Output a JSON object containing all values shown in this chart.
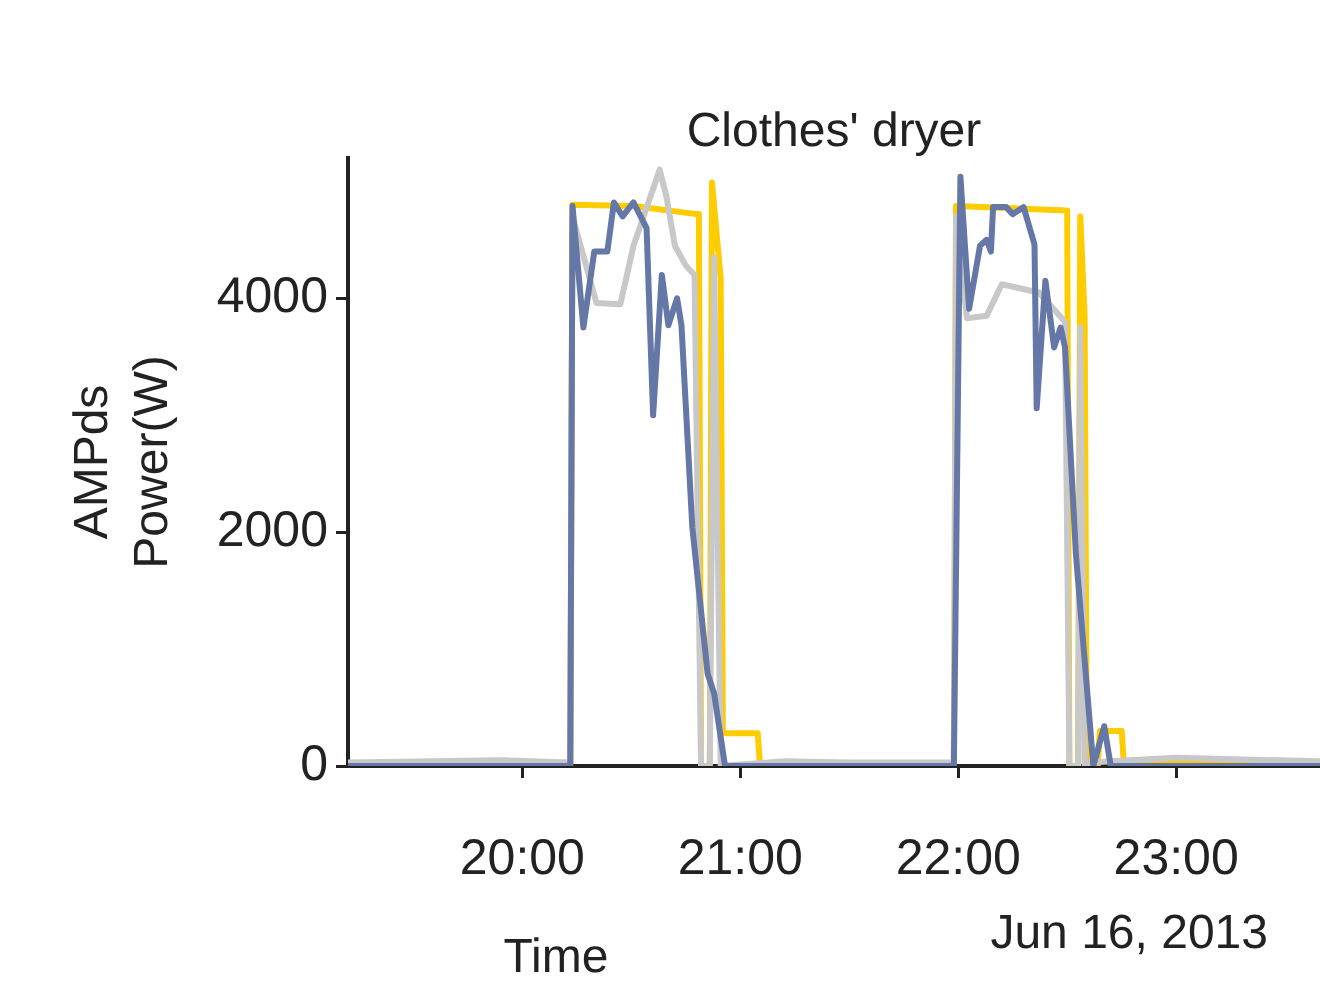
{
  "chart_data": {
    "type": "line",
    "title": "Clothes' dryer",
    "xlabel": "Time",
    "ylabel": "AMPds\nPower(W)",
    "annotations": [
      "Jun 16, 2013"
    ],
    "xlim": [
      19.2,
      23.66
    ],
    "xticks": [
      {
        "value": 20,
        "label": "20:00"
      },
      {
        "value": 21,
        "label": "21:00"
      },
      {
        "value": 22,
        "label": "22:00"
      },
      {
        "value": 23,
        "label": "23:00"
      }
    ],
    "ylim": [
      0,
      5200
    ],
    "yticks": [
      0,
      2000,
      4000
    ],
    "series": [
      {
        "color": "#ffcc00",
        "x": [
          19.2,
          20.22,
          20.23,
          20.51,
          20.8,
          20.81,
          20.82,
          20.86,
          20.87,
          20.91,
          20.92,
          21.08,
          21.09,
          21.98,
          21.99,
          22.5,
          22.51,
          22.55,
          22.56,
          22.58,
          22.59,
          22.64,
          22.65,
          22.75,
          22.76,
          23.66
        ],
        "values": [
          20,
          20,
          4800,
          4790,
          4720,
          4720,
          0,
          0,
          4990,
          4170,
          280,
          280,
          20,
          20,
          4790,
          4750,
          0,
          0,
          4700,
          3850,
          0,
          0,
          300,
          300,
          20,
          20
        ]
      },
      {
        "color": "#c8c8c8",
        "x": [
          19.2,
          19.9,
          20.22,
          20.23,
          20.34,
          20.45,
          20.51,
          20.63,
          20.66,
          20.7,
          20.75,
          20.79,
          20.82,
          20.86,
          20.88,
          20.91,
          21.2,
          21.5,
          21.98,
          21.99,
          22.04,
          22.13,
          22.2,
          22.37,
          22.49,
          22.51,
          22.55,
          22.56,
          22.58,
          22.6,
          23.0,
          23.66
        ],
        "values": [
          30,
          50,
          30,
          4700,
          3960,
          3950,
          4450,
          5100,
          4880,
          4450,
          4280,
          4200,
          0,
          0,
          4350,
          0,
          40,
          30,
          30,
          4700,
          3830,
          3850,
          4120,
          4050,
          3800,
          0,
          0,
          3750,
          0,
          30,
          70,
          40
        ]
      },
      {
        "color": "#6477a6",
        "x": [
          19.2,
          20.22,
          20.23,
          20.28,
          20.33,
          20.39,
          20.42,
          20.46,
          20.51,
          20.57,
          20.6,
          20.64,
          20.67,
          20.71,
          20.73,
          20.78,
          20.85,
          20.88,
          20.93,
          21.98,
          22.01,
          22.05,
          22.1,
          22.13,
          22.15,
          22.16,
          22.22,
          22.25,
          22.3,
          22.35,
          22.36,
          22.4,
          22.44,
          22.47,
          22.49,
          22.54,
          22.62,
          22.67,
          22.7,
          23.66
        ],
        "values": [
          0,
          0,
          4790,
          3750,
          4400,
          4400,
          4820,
          4700,
          4820,
          4600,
          3000,
          4200,
          3770,
          4000,
          3770,
          2040,
          790,
          620,
          0,
          0,
          5040,
          3910,
          4450,
          4500,
          4400,
          4780,
          4780,
          4720,
          4780,
          4460,
          3060,
          4150,
          3580,
          3750,
          3580,
          1810,
          0,
          340,
          0,
          0
        ]
      }
    ]
  }
}
